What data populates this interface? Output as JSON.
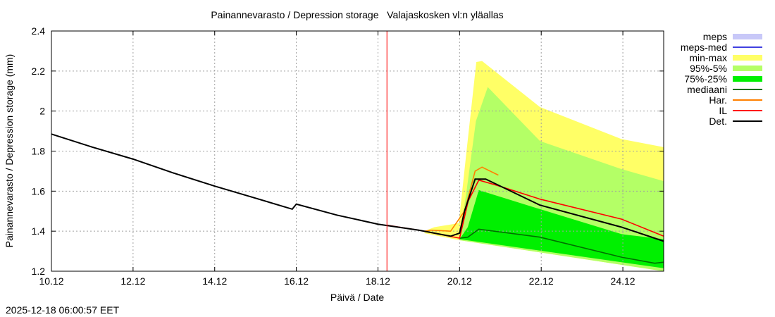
{
  "chart_data": {
    "type": "area",
    "title": "Painannevarasto / Depression storage   Valajaskosken vl:n yläallas",
    "xlabel": "Päivä / Date",
    "ylabel": "Painannevarasto / Depression storage (mm)",
    "ylim": [
      1.2,
      2.4
    ],
    "xlim_days_from_10_12": [
      0,
      15
    ],
    "x_ticks": [
      {
        "d": 0,
        "label": "10.12"
      },
      {
        "d": 2,
        "label": "12.12"
      },
      {
        "d": 4,
        "label": "14.12"
      },
      {
        "d": 6,
        "label": "16.12"
      },
      {
        "d": 8,
        "label": "18.12"
      },
      {
        "d": 10,
        "label": "20.12"
      },
      {
        "d": 12,
        "label": "22.12"
      },
      {
        "d": 14,
        "label": "24.12"
      }
    ],
    "y_ticks": [
      {
        "v": 1.2,
        "label": "1.2"
      },
      {
        "v": 1.4,
        "label": "1.4"
      },
      {
        "v": 1.6,
        "label": "1.6"
      },
      {
        "v": 1.8,
        "label": "1.8"
      },
      {
        "v": 2.0,
        "label": "2"
      },
      {
        "v": 2.2,
        "label": "2.2"
      },
      {
        "v": 2.4,
        "label": "2.4"
      }
    ],
    "grid": true,
    "forecast_start_day": 8.22,
    "legend": [
      {
        "label": "meps",
        "color": "#c8c8f8",
        "kind": "band"
      },
      {
        "label": "meps-med",
        "color": "#4040e0",
        "kind": "line"
      },
      {
        "label": "min-max",
        "color": "#ffff66",
        "kind": "band"
      },
      {
        "label": "95%-5%",
        "color": "#b4ff66",
        "kind": "band"
      },
      {
        "label": "75%-25%",
        "color": "#00f000",
        "kind": "band"
      },
      {
        "label": "mediaani",
        "color": "#007000",
        "kind": "line"
      },
      {
        "label": "Har.",
        "color": "#ff8000",
        "kind": "line"
      },
      {
        "label": "IL",
        "color": "#ff0000",
        "kind": "line"
      },
      {
        "label": "Det.",
        "color": "#000000",
        "kind": "line"
      }
    ],
    "bands": {
      "min-max": {
        "upper": [
          [
            9.14,
            1.4
          ],
          [
            9.38,
            1.42
          ],
          [
            9.98,
            1.44
          ],
          [
            10.17,
            1.8
          ],
          [
            10.41,
            2.245
          ],
          [
            10.55,
            2.25
          ],
          [
            11.97,
            2.02
          ],
          [
            13.97,
            1.86
          ],
          [
            15,
            1.82
          ]
        ],
        "lower": [
          [
            15,
            1.2
          ],
          [
            10,
            1.355
          ],
          [
            9.14,
            1.39
          ]
        ]
      },
      "95%-5%": {
        "upper": [
          [
            10,
            1.37
          ],
          [
            10.17,
            1.6
          ],
          [
            10.4,
            1.95
          ],
          [
            10.69,
            2.12
          ],
          [
            11.97,
            1.85
          ],
          [
            13.97,
            1.71
          ],
          [
            15,
            1.65
          ]
        ],
        "lower": [
          [
            15,
            1.2
          ],
          [
            10,
            1.355
          ]
        ]
      },
      "75%-25%": {
        "upper": [
          [
            10,
            1.36
          ],
          [
            10.2,
            1.42
          ],
          [
            10.47,
            1.605
          ],
          [
            11.97,
            1.51
          ],
          [
            13.97,
            1.385
          ],
          [
            15,
            1.36
          ]
        ],
        "lower": [
          [
            15,
            1.215
          ],
          [
            10,
            1.36
          ]
        ]
      }
    },
    "series": [
      {
        "name": "Det.",
        "color": "#000000",
        "points": [
          [
            0,
            1.885
          ],
          [
            1,
            1.82
          ],
          [
            2,
            1.76
          ],
          [
            3,
            1.69
          ],
          [
            4,
            1.625
          ],
          [
            5,
            1.565
          ],
          [
            5.9,
            1.51
          ],
          [
            6,
            1.535
          ],
          [
            7,
            1.48
          ],
          [
            8,
            1.435
          ],
          [
            9,
            1.405
          ],
          [
            9.78,
            1.375
          ],
          [
            10,
            1.39
          ],
          [
            10.12,
            1.5
          ],
          [
            10.38,
            1.66
          ],
          [
            10.64,
            1.66
          ],
          [
            11.97,
            1.53
          ],
          [
            13.97,
            1.42
          ],
          [
            15,
            1.35
          ]
        ]
      },
      {
        "name": "IL",
        "color": "#ff0000",
        "points": [
          [
            8.22,
            1.43
          ],
          [
            9,
            1.405
          ],
          [
            10,
            1.365
          ],
          [
            10.21,
            1.55
          ],
          [
            10.47,
            1.655
          ],
          [
            10.9,
            1.63
          ],
          [
            11.97,
            1.56
          ],
          [
            13.97,
            1.46
          ],
          [
            15,
            1.375
          ]
        ]
      },
      {
        "name": "Har.",
        "color": "#ff8000",
        "points": [
          [
            9.14,
            1.4
          ],
          [
            9.3,
            1.405
          ],
          [
            9.78,
            1.4
          ],
          [
            10.12,
            1.5
          ],
          [
            10.38,
            1.7
          ],
          [
            10.55,
            1.72
          ],
          [
            10.95,
            1.68
          ]
        ]
      },
      {
        "name": "mediaani",
        "color": "#007000",
        "points": [
          [
            10,
            1.365
          ],
          [
            10.2,
            1.37
          ],
          [
            10.47,
            1.41
          ],
          [
            11.97,
            1.37
          ],
          [
            13.97,
            1.27
          ],
          [
            14.78,
            1.24
          ],
          [
            15,
            1.245
          ]
        ]
      }
    ]
  },
  "footer": {
    "timestamp": "2025-12-18 06:00:57 EET"
  }
}
